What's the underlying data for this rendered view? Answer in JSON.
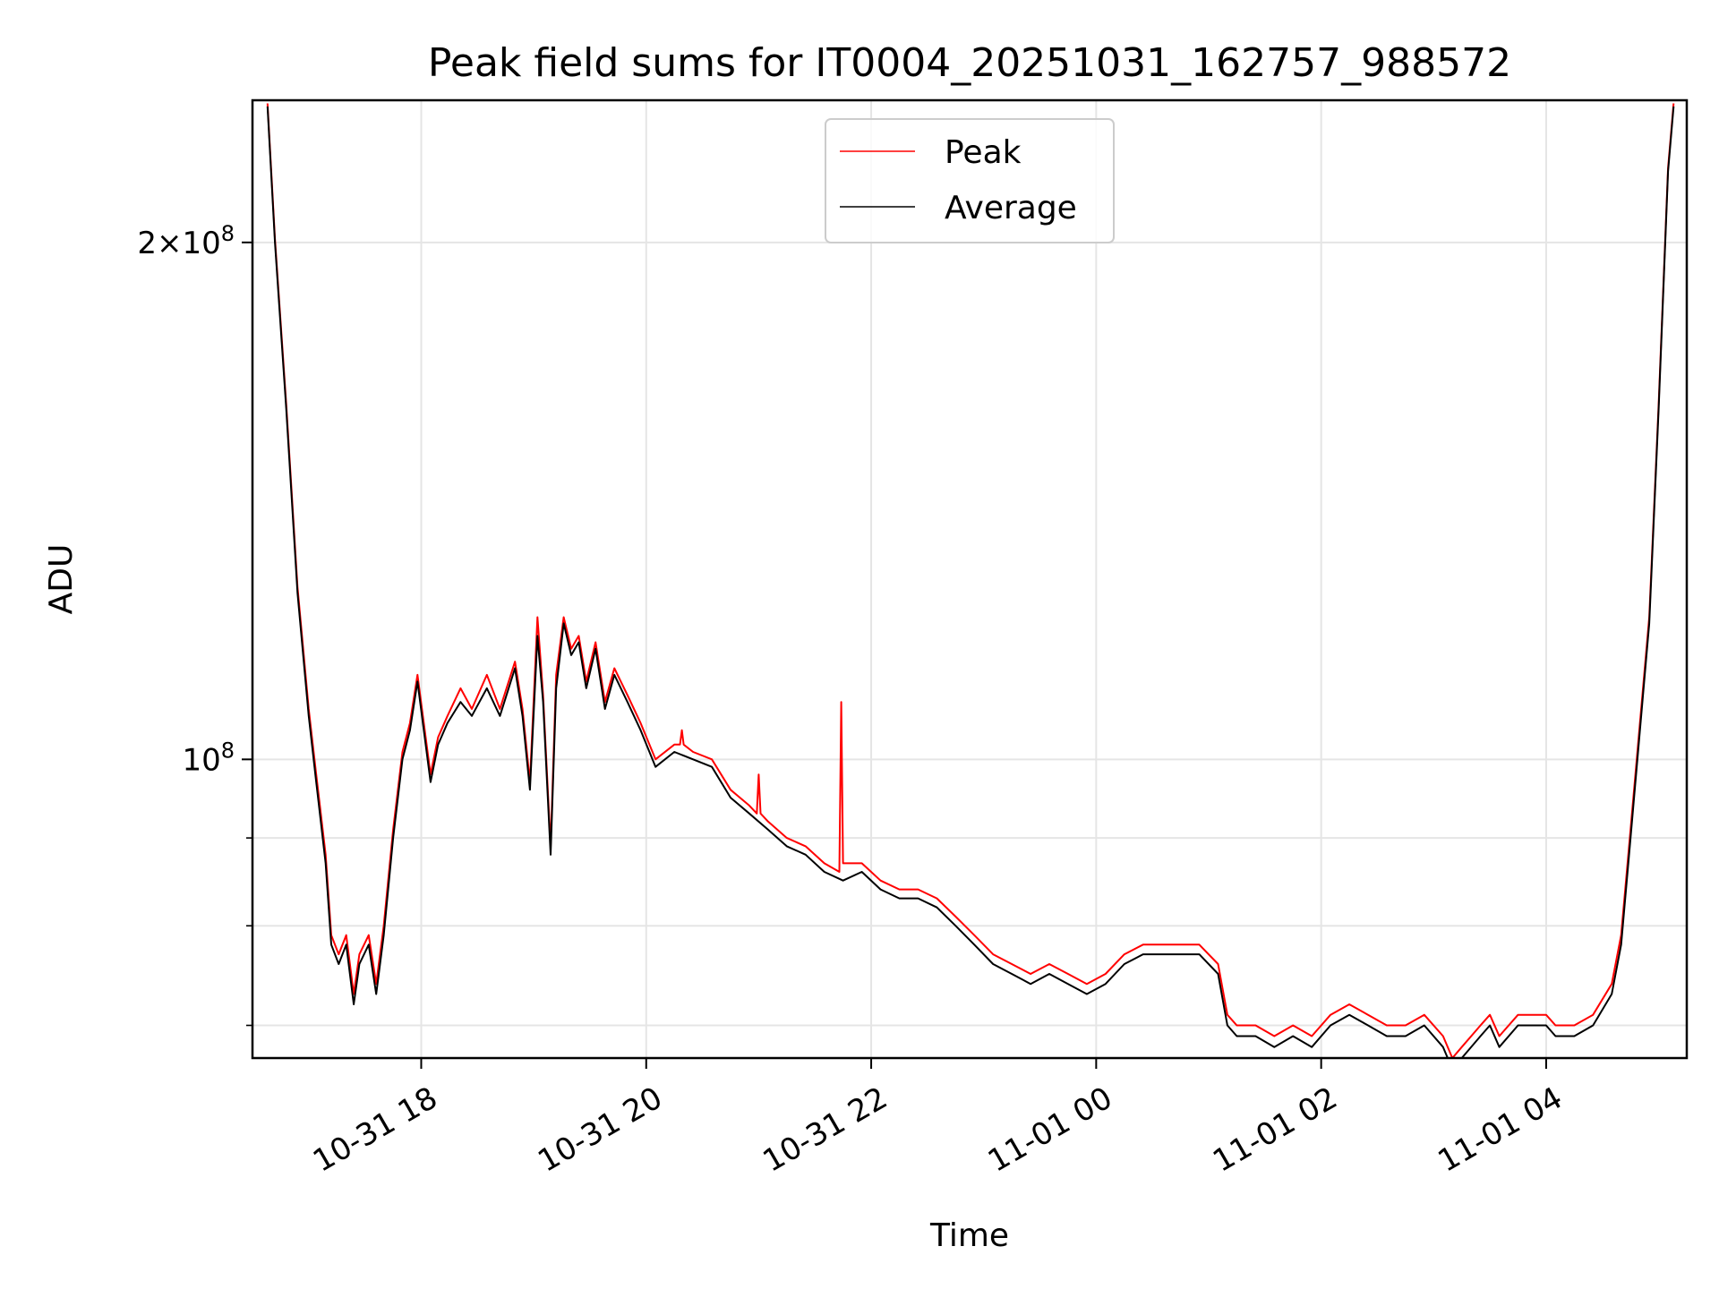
{
  "chart_data": {
    "type": "line",
    "title": "Peak field sums for IT0004_20251031_162757_988572",
    "xlabel": "Time",
    "ylabel": "ADU",
    "y_scale": "log",
    "xlim": [
      "2025-10-31 16:30",
      "2025-11-01 05:15"
    ],
    "ylim": [
      67000000,
      242000000
    ],
    "x_ticks": [
      "10-31 18",
      "10-31 20",
      "10-31 22",
      "11-01 00",
      "11-01 02",
      "11-01 04"
    ],
    "x_tick_values": [
      "2025-10-31 18:00",
      "2025-10-31 20:00",
      "2025-10-31 22:00",
      "2025-11-01 00:00",
      "2025-11-01 02:00",
      "2025-11-01 04:00"
    ],
    "y_major_ticks": [
      {
        "value": 200000000,
        "mantissa": "2",
        "times": "×",
        "base": "10",
        "exp": "8"
      },
      {
        "value": 100000000,
        "mantissa": "",
        "times": "",
        "base": "10",
        "exp": "8"
      }
    ],
    "y_minor_ticks": [
      90000000,
      80000000,
      70000000
    ],
    "grid": true,
    "legend": {
      "position": "upper center",
      "entries": [
        "Peak",
        "Average"
      ]
    },
    "colors": {
      "Peak": "#ff0000",
      "Average": "#000000"
    },
    "series": [
      {
        "name": "Average",
        "x": [
          "2025-10-31 16:38",
          "2025-10-31 16:42",
          "2025-10-31 16:48",
          "2025-10-31 16:54",
          "2025-10-31 17:00",
          "2025-10-31 17:04",
          "2025-10-31 17:09",
          "2025-10-31 17:12",
          "2025-10-31 17:16",
          "2025-10-31 17:20",
          "2025-10-31 17:24",
          "2025-10-31 17:27",
          "2025-10-31 17:32",
          "2025-10-31 17:36",
          "2025-10-31 17:40",
          "2025-10-31 17:45",
          "2025-10-31 17:50",
          "2025-10-31 17:54",
          "2025-10-31 17:58",
          "2025-10-31 18:05",
          "2025-10-31 18:09",
          "2025-10-31 18:14",
          "2025-10-31 18:21",
          "2025-10-31 18:27",
          "2025-10-31 18:35",
          "2025-10-31 18:42",
          "2025-10-31 18:50",
          "2025-10-31 18:54",
          "2025-10-31 18:58",
          "2025-10-31 19:02",
          "2025-10-31 19:05",
          "2025-10-31 19:09",
          "2025-10-31 19:12",
          "2025-10-31 19:16",
          "2025-10-31 19:20",
          "2025-10-31 19:24",
          "2025-10-31 19:28",
          "2025-10-31 19:33",
          "2025-10-31 19:38",
          "2025-10-31 19:43",
          "2025-10-31 19:50",
          "2025-10-31 19:57",
          "2025-10-31 20:05",
          "2025-10-31 20:15",
          "2025-10-31 20:25",
          "2025-10-31 20:35",
          "2025-10-31 20:45",
          "2025-10-31 20:55",
          "2025-10-31 21:05",
          "2025-10-31 21:15",
          "2025-10-31 21:25",
          "2025-10-31 21:35",
          "2025-10-31 21:45",
          "2025-10-31 21:55",
          "2025-10-31 22:05",
          "2025-10-31 22:15",
          "2025-10-31 22:25",
          "2025-10-31 22:35",
          "2025-10-31 22:45",
          "2025-10-31 22:55",
          "2025-10-31 23:05",
          "2025-10-31 23:15",
          "2025-10-31 23:25",
          "2025-10-31 23:35",
          "2025-10-31 23:45",
          "2025-10-31 23:55",
          "2025-11-01 00:05",
          "2025-11-01 00:15",
          "2025-11-01 00:25",
          "2025-11-01 00:35",
          "2025-11-01 00:45",
          "2025-11-01 00:55",
          "2025-11-01 01:05",
          "2025-11-01 01:10",
          "2025-11-01 01:15",
          "2025-11-01 01:25",
          "2025-11-01 01:35",
          "2025-11-01 01:45",
          "2025-11-01 01:55",
          "2025-11-01 02:05",
          "2025-11-01 02:15",
          "2025-11-01 02:25",
          "2025-11-01 02:35",
          "2025-11-01 02:45",
          "2025-11-01 02:55",
          "2025-11-01 03:05",
          "2025-11-01 03:10",
          "2025-11-01 03:15",
          "2025-11-01 03:25",
          "2025-11-01 03:30",
          "2025-11-01 03:35",
          "2025-11-01 03:45",
          "2025-11-01 03:55",
          "2025-11-01 04:00",
          "2025-11-01 04:05",
          "2025-11-01 04:15",
          "2025-11-01 04:25",
          "2025-11-01 04:35",
          "2025-11-01 04:40",
          "2025-11-01 04:45",
          "2025-11-01 04:55",
          "2025-11-01 05:00",
          "2025-11-01 05:05",
          "2025-11-01 05:08"
        ],
        "y": [
          240000000,
          200000000,
          160000000,
          125000000,
          106000000,
          97000000,
          87000000,
          78000000,
          76000000,
          78000000,
          72000000,
          76000000,
          78000000,
          73000000,
          79000000,
          90000000,
          100000000,
          104000000,
          111000000,
          97000000,
          102000000,
          105000000,
          108000000,
          106000000,
          110000000,
          106000000,
          113000000,
          106000000,
          96000000,
          118000000,
          108000000,
          88000000,
          110000000,
          120000000,
          115000000,
          117000000,
          110000000,
          116000000,
          107000000,
          112000000,
          108000000,
          104000000,
          99000000,
          101000000,
          100000000,
          99000000,
          95000000,
          93000000,
          91000000,
          89000000,
          88000000,
          86000000,
          85000000,
          86000000,
          84000000,
          83000000,
          83000000,
          82000000,
          80000000,
          78000000,
          76000000,
          75000000,
          74000000,
          75000000,
          74000000,
          73000000,
          74000000,
          76000000,
          77000000,
          77000000,
          77000000,
          77000000,
          75000000,
          70000000,
          69000000,
          69000000,
          68000000,
          69000000,
          68000000,
          70000000,
          71000000,
          70000000,
          69000000,
          69000000,
          70000000,
          68000000,
          66000000,
          67000000,
          69000000,
          70000000,
          68000000,
          70000000,
          70000000,
          70000000,
          69000000,
          69000000,
          70000000,
          73000000,
          78000000,
          90000000,
          120000000,
          160000000,
          220000000,
          240000000
        ]
      },
      {
        "name": "Peak",
        "x": [
          "2025-10-31 16:38",
          "2025-10-31 16:42",
          "2025-10-31 16:48",
          "2025-10-31 16:54",
          "2025-10-31 17:00",
          "2025-10-31 17:04",
          "2025-10-31 17:09",
          "2025-10-31 17:12",
          "2025-10-31 17:16",
          "2025-10-31 17:20",
          "2025-10-31 17:24",
          "2025-10-31 17:27",
          "2025-10-31 17:32",
          "2025-10-31 17:36",
          "2025-10-31 17:40",
          "2025-10-31 17:45",
          "2025-10-31 17:50",
          "2025-10-31 17:54",
          "2025-10-31 17:58",
          "2025-10-31 18:05",
          "2025-10-31 18:09",
          "2025-10-31 18:14",
          "2025-10-31 18:21",
          "2025-10-31 18:27",
          "2025-10-31 18:35",
          "2025-10-31 18:42",
          "2025-10-31 18:50",
          "2025-10-31 18:54",
          "2025-10-31 18:58",
          "2025-10-31 19:02",
          "2025-10-31 19:05",
          "2025-10-31 19:09",
          "2025-10-31 19:12",
          "2025-10-31 19:16",
          "2025-10-31 19:20",
          "2025-10-31 19:24",
          "2025-10-31 19:28",
          "2025-10-31 19:33",
          "2025-10-31 19:38",
          "2025-10-31 19:43",
          "2025-10-31 19:50",
          "2025-10-31 19:57",
          "2025-10-31 20:05",
          "2025-10-31 20:15",
          "2025-10-31 20:18",
          "2025-10-31 20:19",
          "2025-10-31 20:20",
          "2025-10-31 20:25",
          "2025-10-31 20:35",
          "2025-10-31 20:45",
          "2025-10-31 20:55",
          "2025-10-31 20:59",
          "2025-10-31 21:00",
          "2025-10-31 21:01",
          "2025-10-31 21:05",
          "2025-10-31 21:15",
          "2025-10-31 21:25",
          "2025-10-31 21:35",
          "2025-10-31 21:43",
          "2025-10-31 21:44",
          "2025-10-31 21:45",
          "2025-10-31 21:55",
          "2025-10-31 22:05",
          "2025-10-31 22:15",
          "2025-10-31 22:25",
          "2025-10-31 22:35",
          "2025-10-31 22:45",
          "2025-10-31 22:55",
          "2025-10-31 23:05",
          "2025-10-31 23:15",
          "2025-10-31 23:25",
          "2025-10-31 23:35",
          "2025-10-31 23:45",
          "2025-10-31 23:55",
          "2025-11-01 00:05",
          "2025-11-01 00:15",
          "2025-11-01 00:25",
          "2025-11-01 00:35",
          "2025-11-01 00:45",
          "2025-11-01 00:55",
          "2025-11-01 01:05",
          "2025-11-01 01:10",
          "2025-11-01 01:15",
          "2025-11-01 01:25",
          "2025-11-01 01:35",
          "2025-11-01 01:45",
          "2025-11-01 01:55",
          "2025-11-01 02:05",
          "2025-11-01 02:15",
          "2025-11-01 02:25",
          "2025-11-01 02:35",
          "2025-11-01 02:45",
          "2025-11-01 02:55",
          "2025-11-01 03:05",
          "2025-11-01 03:10",
          "2025-11-01 03:15",
          "2025-11-01 03:25",
          "2025-11-01 03:30",
          "2025-11-01 03:35",
          "2025-11-01 03:45",
          "2025-11-01 03:55",
          "2025-11-01 04:00",
          "2025-11-01 04:05",
          "2025-11-01 04:15",
          "2025-11-01 04:25",
          "2025-11-01 04:35",
          "2025-11-01 04:40",
          "2025-11-01 04:45",
          "2025-11-01 04:55",
          "2025-11-01 05:00",
          "2025-11-01 05:05",
          "2025-11-01 05:08"
        ],
        "y": [
          241000000,
          201000000,
          161000000,
          126000000,
          107000000,
          98000000,
          88000000,
          79000000,
          77000000,
          79000000,
          73000000,
          77000000,
          79000000,
          74000000,
          80000000,
          91000000,
          101000000,
          105000000,
          112000000,
          98000000,
          103000000,
          106000000,
          110000000,
          107000000,
          112000000,
          107000000,
          114000000,
          107000000,
          97000000,
          121000000,
          109000000,
          89000000,
          112000000,
          121000000,
          116000000,
          118000000,
          111000000,
          117000000,
          108000000,
          113000000,
          109000000,
          105000000,
          100000000,
          102000000,
          102000000,
          104000000,
          102000000,
          101000000,
          100000000,
          96000000,
          94000000,
          93000000,
          98000000,
          93000000,
          92000000,
          90000000,
          89000000,
          87000000,
          86000000,
          108000000,
          87000000,
          87000000,
          85000000,
          84000000,
          84000000,
          83000000,
          81000000,
          79000000,
          77000000,
          76000000,
          75000000,
          76000000,
          75000000,
          74000000,
          75000000,
          77000000,
          78000000,
          78000000,
          78000000,
          78000000,
          76000000,
          71000000,
          70000000,
          70000000,
          69000000,
          70000000,
          69000000,
          71000000,
          72000000,
          71000000,
          70000000,
          70000000,
          71000000,
          69000000,
          67000000,
          68000000,
          70000000,
          71000000,
          69000000,
          71000000,
          71000000,
          71000000,
          70000000,
          70000000,
          71000000,
          74000000,
          79000000,
          91000000,
          121000000,
          161000000,
          221000000,
          241000000
        ]
      }
    ]
  }
}
